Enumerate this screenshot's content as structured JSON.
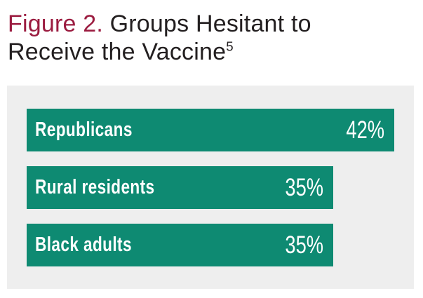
{
  "title": {
    "prefix": "Figure 2.",
    "text": "Groups Hesitant to Receive the Vaccine",
    "superscript": "5"
  },
  "chart_data": {
    "type": "bar",
    "orientation": "horizontal",
    "title": "Figure 2. Groups Hesitant to Receive the Vaccine",
    "title_footnote_marker": "5",
    "categories": [
      "Republicans",
      "Rural residents",
      "Black adults"
    ],
    "values": [
      42,
      35,
      35
    ],
    "display_values": [
      "42%",
      "35%",
      "35%"
    ],
    "value_suffix": "%",
    "xlabel": "",
    "ylabel": "",
    "xlim": [
      0,
      45
    ],
    "grid": false,
    "legend": false,
    "data_labels_position": "inside",
    "bars_scaled_to_max_value": true
  },
  "colors": {
    "figure_label": "#9b1c40",
    "title_text": "#231f20",
    "bar_fill": "#0e8a72",
    "panel_background": "#eeeeee",
    "bar_text": "#ffffff",
    "page_background": "#ffffff"
  }
}
